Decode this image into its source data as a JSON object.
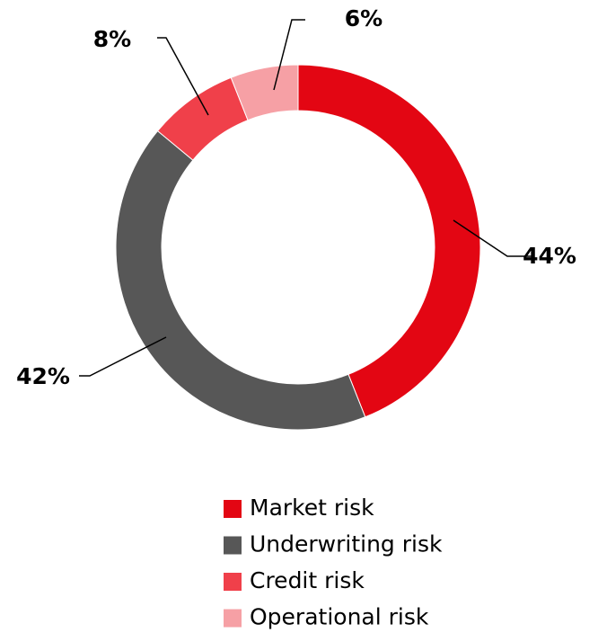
{
  "chart_data": {
    "type": "donut",
    "categories": [
      "Market risk",
      "Underwriting risk",
      "Credit risk",
      "Operational risk"
    ],
    "values": [
      44,
      42,
      8,
      6
    ],
    "value_labels": [
      "44%",
      "42%",
      "8%",
      "6%"
    ],
    "colors": [
      "#e30613",
      "#575757",
      "#f0404a",
      "#f6a0a5"
    ],
    "legend": "bottom"
  }
}
